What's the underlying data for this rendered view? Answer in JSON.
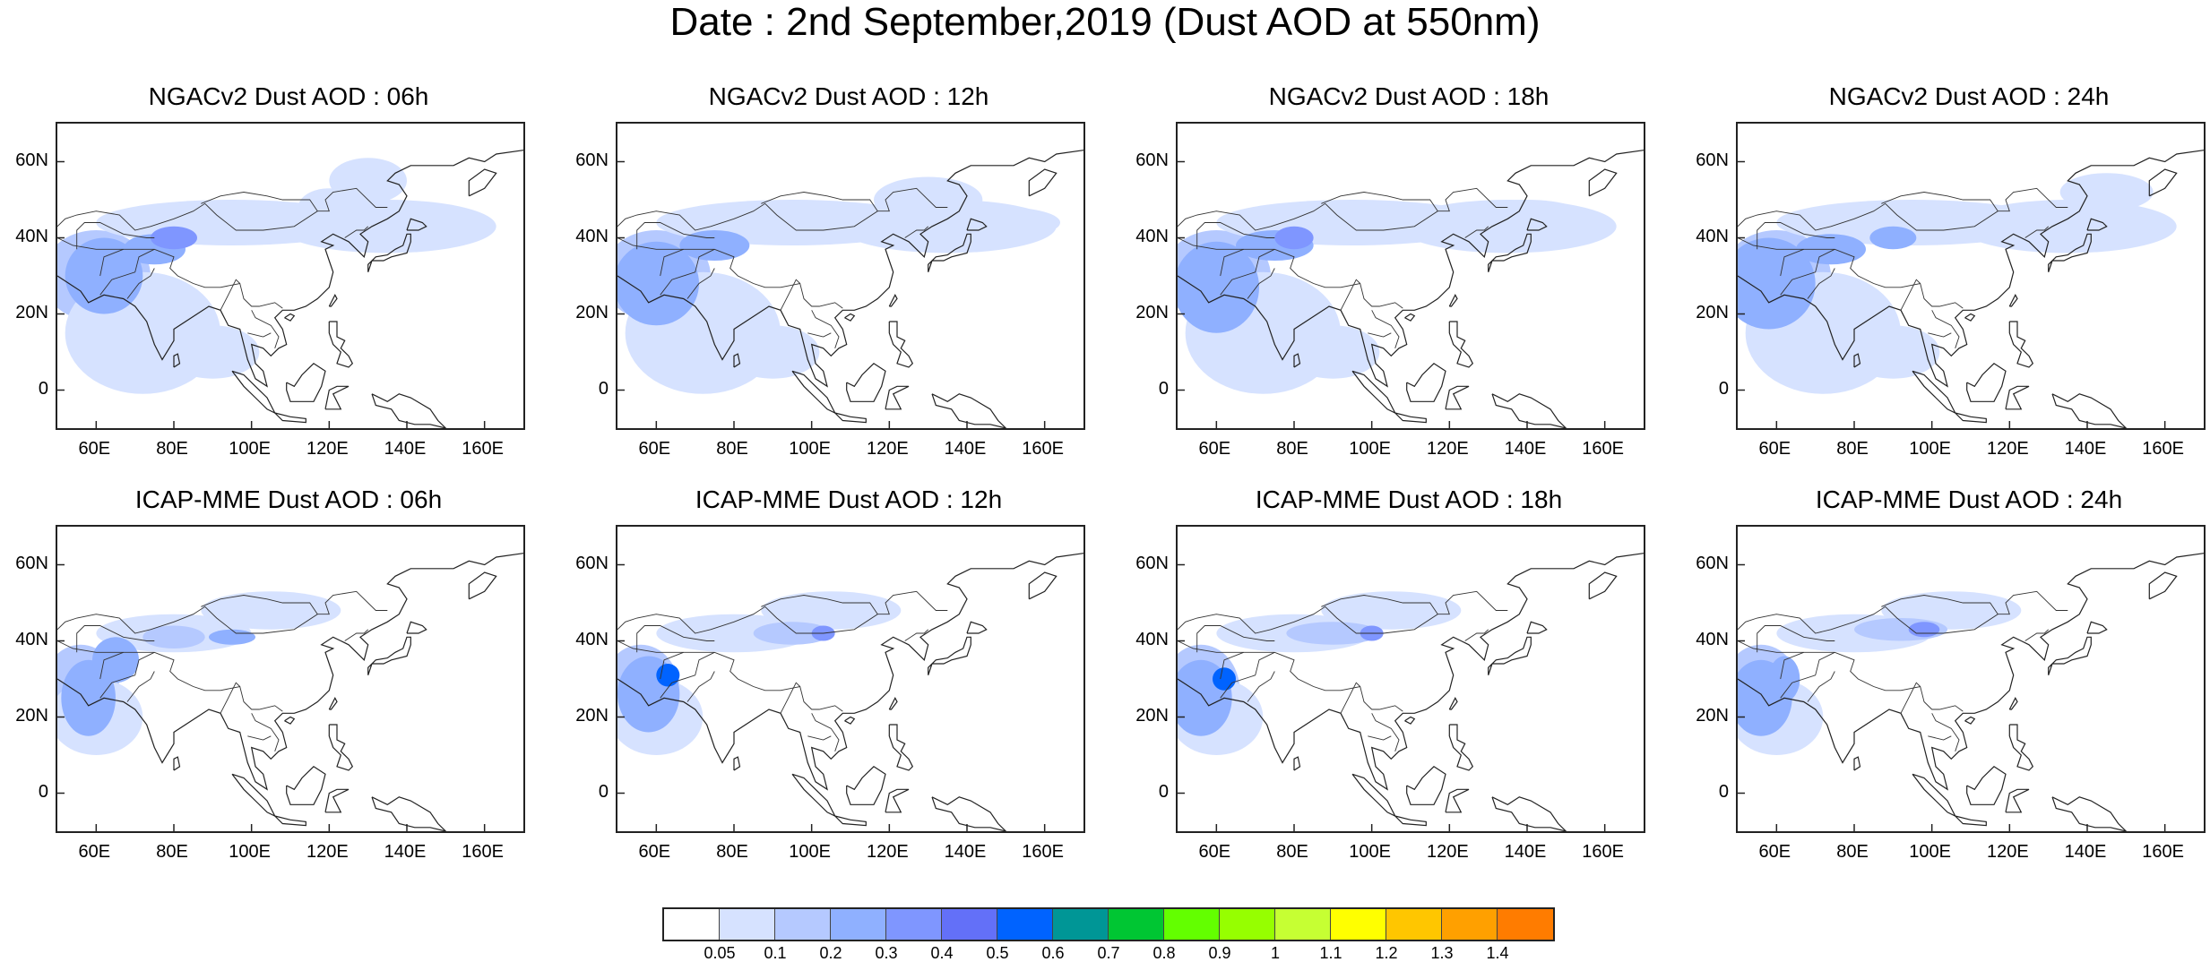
{
  "title": "Date : 2nd September,2019 (Dust AOD at 550nm)",
  "panels": [
    {
      "title": "NGACv2 Dust AOD : 06h"
    },
    {
      "title": "NGACv2 Dust AOD : 12h"
    },
    {
      "title": "NGACv2 Dust AOD : 18h"
    },
    {
      "title": "NGACv2 Dust AOD : 24h"
    },
    {
      "title": "ICAP-MME Dust AOD : 06h"
    },
    {
      "title": "ICAP-MME Dust AOD : 12h"
    },
    {
      "title": "ICAP-MME Dust AOD : 18h"
    },
    {
      "title": "ICAP-MME Dust AOD : 24h"
    }
  ],
  "map": {
    "lat_ticks": [
      "60N",
      "40N",
      "20N",
      "0"
    ],
    "lon_ticks": [
      "60E",
      "80E",
      "100E",
      "120E",
      "140E",
      "160E"
    ]
  },
  "colorbar": {
    "labels": [
      "0.05",
      "0.1",
      "0.2",
      "0.3",
      "0.4",
      "0.5",
      "0.6",
      "0.7",
      "0.8",
      "0.9",
      "1",
      "1.1",
      "1.2",
      "1.3",
      "1.4"
    ],
    "colors": [
      "#ffffff",
      "#d6e2ff",
      "#b5c9ff",
      "#8fb0ff",
      "#7f96ff",
      "#6370f8",
      "#0063ff",
      "#009696",
      "#00c633",
      "#63ff00",
      "#96ff00",
      "#c6ff33",
      "#ffff00",
      "#ffc600",
      "#ffa000",
      "#ff7c00",
      "#ff1900"
    ]
  }
}
